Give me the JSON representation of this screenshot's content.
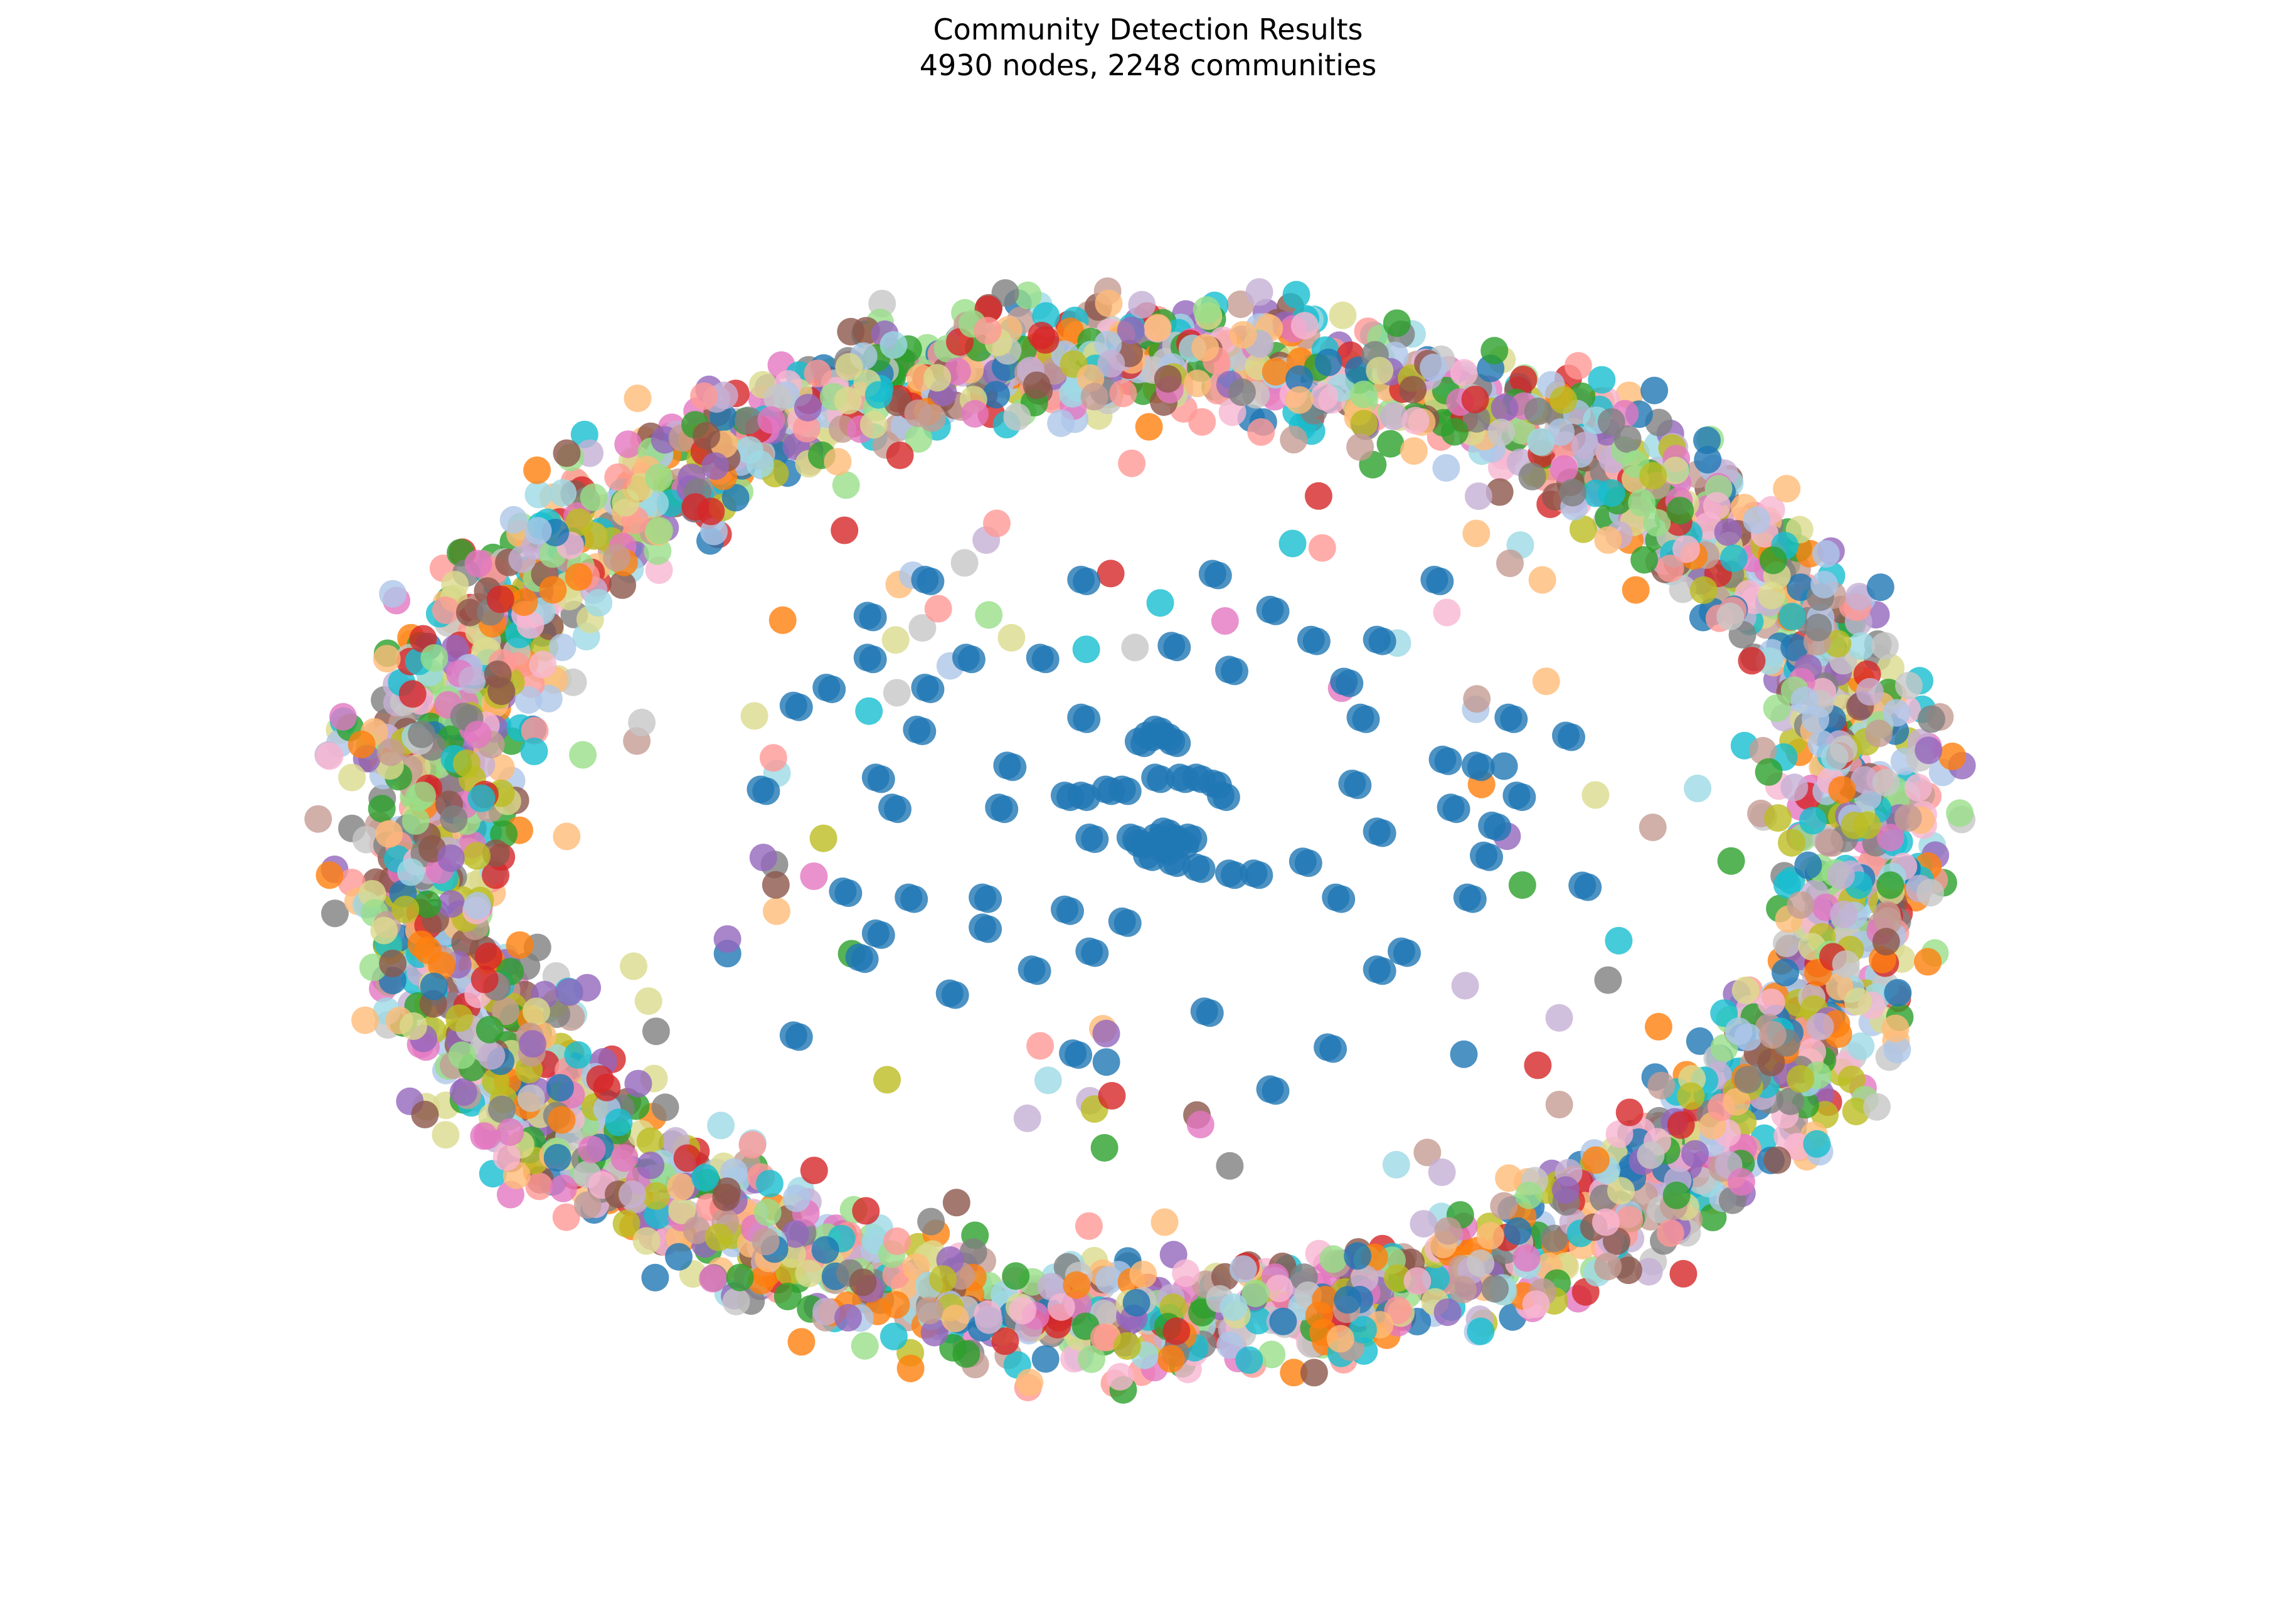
{
  "chart_data": {
    "type": "scatter",
    "title": "Community Detection Results",
    "subtitle": "4930 nodes, 2248 communities",
    "stats": {
      "nodes": 4930,
      "communities": 2248
    },
    "axes_visible": false,
    "grid": false,
    "legend": "none",
    "x_range": [
      -1.0,
      1.0
    ],
    "y_range": [
      -1.0,
      1.0
    ],
    "layout": "ring of many small communities surrounding a sparse core dominated by one large community",
    "marker_alpha": 0.8,
    "palette": [
      "#1f77b4",
      "#aec7e8",
      "#ff7f0e",
      "#ffbb78",
      "#2ca02c",
      "#98df8a",
      "#d62728",
      "#ff9896",
      "#9467bd",
      "#c5b0d5",
      "#8c564b",
      "#c49c94",
      "#e377c2",
      "#f7b6d2",
      "#7f7f7f",
      "#c7c7c7",
      "#bcbd22",
      "#dbdb8d",
      "#17becf",
      "#9edae5"
    ],
    "dominant_community_color": "#1f77b4",
    "core_points": [
      [
        0.0,
        0.17
      ],
      [
        0.02,
        0.17
      ],
      [
        -0.01,
        0.16
      ],
      [
        0.03,
        0.16
      ],
      [
        0.01,
        0.18
      ],
      [
        0.01,
        0.0
      ],
      [
        0.03,
        0.0
      ],
      [
        -0.01,
        -0.01
      ],
      [
        0.02,
        -0.02
      ],
      [
        0.04,
        -0.01
      ],
      [
        0.0,
        -0.03
      ],
      [
        0.02,
        0.01
      ],
      [
        -0.02,
        0.0
      ],
      [
        0.05,
        0.0
      ],
      [
        0.03,
        -0.04
      ],
      [
        0.01,
        0.1
      ],
      [
        0.04,
        0.1
      ],
      [
        0.06,
        0.1
      ],
      [
        -0.03,
        0.08
      ],
      [
        -0.05,
        0.08
      ],
      [
        -0.08,
        0.07
      ],
      [
        -0.1,
        0.07
      ],
      [
        -0.07,
        0.0
      ],
      [
        0.06,
        -0.05
      ],
      [
        0.1,
        -0.06
      ],
      [
        0.13,
        -0.06
      ],
      [
        -0.34,
        0.3
      ],
      [
        -0.22,
        0.3
      ],
      [
        -0.13,
        0.3
      ],
      [
        0.03,
        0.32
      ],
      [
        0.1,
        0.28
      ],
      [
        0.2,
        0.33
      ],
      [
        0.24,
        0.26
      ],
      [
        -0.39,
        0.25
      ],
      [
        -0.27,
        0.25
      ],
      [
        -0.08,
        0.2
      ],
      [
        -0.43,
        0.22
      ],
      [
        -0.28,
        0.18
      ],
      [
        -0.31,
        0.05
      ],
      [
        -0.18,
        0.05
      ],
      [
        -0.33,
        0.1
      ],
      [
        -0.17,
        0.12
      ],
      [
        -0.2,
        -0.1
      ],
      [
        -0.29,
        -0.1
      ],
      [
        -0.37,
        -0.09
      ],
      [
        -0.33,
        -0.16
      ],
      [
        -0.2,
        -0.15
      ],
      [
        -0.14,
        -0.22
      ],
      [
        -0.24,
        -0.26
      ],
      [
        -0.35,
        -0.2
      ],
      [
        -0.07,
        -0.19
      ],
      [
        -0.03,
        -0.14
      ],
      [
        -0.09,
        -0.36
      ],
      [
        0.22,
        -0.35
      ],
      [
        0.28,
        -0.22
      ],
      [
        0.23,
        -0.1
      ],
      [
        0.19,
        -0.04
      ],
      [
        0.26,
        0.2
      ],
      [
        0.25,
        0.09
      ],
      [
        0.28,
        0.01
      ],
      [
        0.37,
        0.05
      ],
      [
        0.42,
        0.02
      ],
      [
        0.36,
        0.13
      ],
      [
        0.39,
        -0.1
      ],
      [
        0.28,
        0.33
      ],
      [
        0.08,
        0.44
      ],
      [
        -0.27,
        0.43
      ],
      [
        -0.08,
        0.43
      ],
      [
        0.07,
        -0.29
      ],
      [
        0.15,
        -0.42
      ],
      [
        0.4,
        0.12
      ],
      [
        0.41,
        -0.03
      ],
      [
        0.44,
        0.2
      ],
      [
        0.51,
        0.17
      ],
      [
        0.45,
        0.07
      ],
      [
        0.53,
        -0.08
      ],
      [
        0.15,
        0.38
      ],
      [
        -0.43,
        -0.33
      ],
      [
        0.31,
        -0.19
      ],
      [
        -0.1,
        -0.12
      ],
      [
        -0.34,
        0.37
      ],
      [
        -0.47,
        0.08
      ],
      [
        0.08,
        0.09
      ],
      [
        0.09,
        0.07
      ],
      [
        0.35,
        0.43
      ]
    ],
    "ring_points": 3330
  }
}
